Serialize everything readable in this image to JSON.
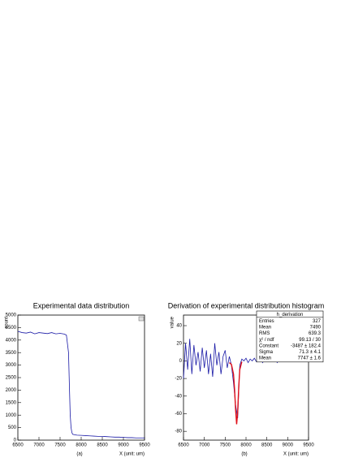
{
  "chart_data": [
    {
      "type": "line",
      "title": "Experimental data distribution",
      "caption": "(a)",
      "xlabel": "X (unit: um)",
      "ylabel": "count",
      "xlim": [
        6500,
        9500
      ],
      "xticks": [
        6500,
        7000,
        7500,
        8000,
        8500,
        9000,
        9500
      ],
      "ylim": [
        0,
        5000
      ],
      "yticks": [
        0,
        500,
        1000,
        1500,
        2000,
        2500,
        3000,
        3500,
        4000,
        4500,
        5000
      ],
      "series": [
        {
          "color": "#1a1aa6",
          "x": [
            6500,
            6600,
            6700,
            6800,
            6900,
            7000,
            7100,
            7200,
            7300,
            7400,
            7500,
            7600,
            7650,
            7700,
            7720,
            7740,
            7760,
            7780,
            7800,
            7900,
            8000,
            8100,
            8200,
            8300,
            8400,
            8500,
            8600,
            8700,
            8800,
            8900,
            9000,
            9100,
            9200,
            9300,
            9400,
            9500
          ],
          "values": [
            4350,
            4300,
            4280,
            4320,
            4250,
            4300,
            4280,
            4260,
            4300,
            4250,
            4270,
            4240,
            4200,
            3500,
            2200,
            1000,
            500,
            300,
            230,
            200,
            190,
            180,
            170,
            160,
            150,
            150,
            140,
            130,
            120,
            120,
            110,
            100,
            100,
            90,
            90,
            90
          ]
        }
      ]
    },
    {
      "type": "line",
      "title": "Derivation of experimental distribution histogram",
      "caption": "(b)",
      "xlabel": "X (unit: um)",
      "ylabel": "value",
      "xlim": [
        6500,
        9500
      ],
      "xticks": [
        6500,
        7000,
        7500,
        8000,
        8500,
        9000,
        9500
      ],
      "ylim": [
        -90,
        52
      ],
      "yticks": [
        -80,
        -60,
        -40,
        -20,
        0,
        20,
        40
      ],
      "series": [
        {
          "color": "#1a1aa6",
          "x": [
            6500,
            6550,
            6600,
            6650,
            6700,
            6750,
            6800,
            6850,
            6900,
            6950,
            7000,
            7050,
            7100,
            7150,
            7200,
            7250,
            7300,
            7350,
            7400,
            7450,
            7500,
            7550,
            7600,
            7650,
            7700,
            7750,
            7800,
            7850,
            7900,
            7950,
            8000,
            8050,
            8100,
            8150,
            8200,
            8250,
            8300,
            8350,
            8400,
            8450,
            8500,
            8550,
            8600,
            8650,
            8700,
            8750,
            8800,
            8850,
            8900,
            8950,
            9000,
            9050,
            9100,
            9150,
            9200,
            9250,
            9300,
            9350,
            9400,
            9450,
            9500
          ],
          "values": [
            -20,
            20,
            -10,
            25,
            -15,
            18,
            -5,
            10,
            -12,
            15,
            -8,
            12,
            -15,
            8,
            -18,
            20,
            -5,
            10,
            -15,
            5,
            12,
            -8,
            5,
            -5,
            -25,
            -50,
            -65,
            -5,
            2,
            0,
            3,
            -2,
            2,
            0,
            3,
            -1,
            2,
            1,
            -2,
            3,
            0,
            2,
            -1,
            3,
            1,
            -2,
            2,
            0,
            3,
            1,
            -1,
            2,
            0,
            3,
            1,
            -1,
            2,
            0,
            1,
            2,
            0
          ]
        },
        {
          "color": "#e0101a",
          "x": [
            7600,
            7650,
            7700,
            7725,
            7750,
            7775,
            7800,
            7825,
            7850,
            7900
          ],
          "values": [
            -2,
            -4,
            -15,
            -32,
            -55,
            -72,
            -58,
            -30,
            -10,
            -1
          ]
        }
      ],
      "stats": {
        "title": "h_derivation",
        "rows": [
          [
            "Entries",
            "327"
          ],
          [
            "Mean",
            "7490"
          ],
          [
            "RMS",
            "639.3"
          ],
          [
            "χ² / ndf",
            "99.13 / 30"
          ],
          [
            "Constant",
            "-3487 ± 182.4"
          ],
          [
            "Sigma",
            "71.3 ± 4.1"
          ],
          [
            "Mean",
            "7747 ± 1.6"
          ]
        ]
      }
    }
  ]
}
